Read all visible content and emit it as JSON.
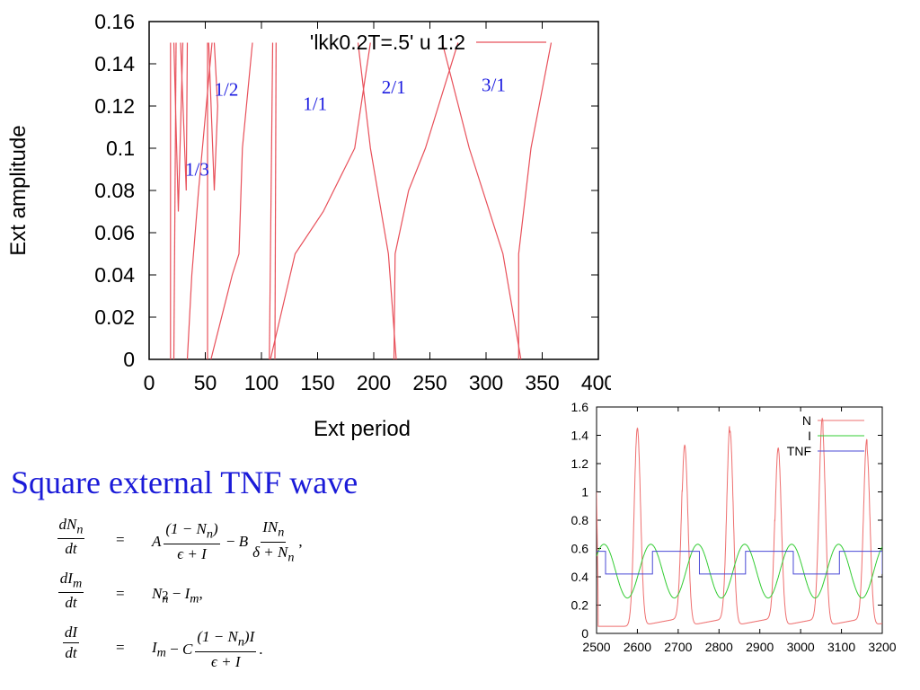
{
  "chart_data": [
    {
      "type": "line",
      "title": "",
      "xlabel": "Ext period",
      "ylabel": "Ext amplitude",
      "xlim": [
        0,
        400
      ],
      "ylim": [
        0,
        0.16
      ],
      "x_ticks": [
        "0",
        "50",
        "100",
        "150",
        "200",
        "250",
        "300",
        "350",
        "400"
      ],
      "y_ticks": [
        "0",
        "0.02",
        "0.04",
        "0.06",
        "0.08",
        "0.1",
        "0.12",
        "0.14",
        "0.16"
      ],
      "grid": false,
      "legend": {
        "position": "top-right",
        "entries": [
          "'lkk0.2T=.5' u 1:2"
        ]
      },
      "color": "#e8505a",
      "annotations": [
        {
          "text": "1/3",
          "x": 32,
          "y": 0.087
        },
        {
          "text": "1/2",
          "x": 58,
          "y": 0.125
        },
        {
          "text": "1/1",
          "x": 137,
          "y": 0.118
        },
        {
          "text": "2/1",
          "x": 207,
          "y": 0.126
        },
        {
          "text": "3/1",
          "x": 296,
          "y": 0.127
        }
      ],
      "series": [
        {
          "points": [
            [
              19,
              0
            ],
            [
              19,
              0.15
            ]
          ]
        },
        {
          "points": [
            [
              22,
              0
            ],
            [
              24,
              0.15
            ]
          ]
        },
        {
          "points": [
            [
              22,
              0.15
            ],
            [
              26,
              0.07
            ],
            [
              30,
              0.15
            ]
          ]
        },
        {
          "points": [
            [
              28,
              0.15
            ],
            [
              33,
              0.08
            ],
            [
              34,
              0.15
            ]
          ]
        },
        {
          "points": [
            [
              34,
              0
            ],
            [
              38,
              0.04
            ],
            [
              44,
              0.08
            ],
            [
              56,
              0.15
            ]
          ]
        },
        {
          "points": [
            [
              52,
              0
            ],
            [
              52,
              0.15
            ]
          ]
        },
        {
          "points": [
            [
              53,
              0.15
            ],
            [
              58,
              0.08
            ],
            [
              61,
              0.12
            ],
            [
              58,
              0.15
            ]
          ]
        },
        {
          "points": [
            [
              55,
              0
            ],
            [
              74,
              0.04
            ],
            [
              80,
              0.05
            ],
            [
              83,
              0.1
            ],
            [
              92,
              0.15
            ]
          ]
        },
        {
          "points": [
            [
              107,
              0
            ],
            [
              110,
              0.15
            ]
          ]
        },
        {
          "points": [
            [
              112,
              0
            ],
            [
              113,
              0.15
            ]
          ]
        },
        {
          "points": [
            [
              108,
              0
            ],
            [
              130,
              0.05
            ],
            [
              155,
              0.07
            ],
            [
              183,
              0.1
            ],
            [
              197,
              0.15
            ]
          ]
        },
        {
          "points": [
            [
              186,
              0.15
            ],
            [
              197,
              0.1
            ],
            [
              213,
              0.05
            ],
            [
              220,
              0
            ]
          ]
        },
        {
          "points": [
            [
              218,
              0
            ],
            [
              219,
              0.05
            ],
            [
              231,
              0.08
            ],
            [
              246,
              0.1
            ],
            [
              275,
              0.15
            ]
          ]
        },
        {
          "points": [
            [
              261,
              0.15
            ],
            [
              285,
              0.1
            ],
            [
              315,
              0.05
            ],
            [
              331,
              0
            ]
          ]
        },
        {
          "points": [
            [
              329,
              0
            ],
            [
              329,
              0.05
            ],
            [
              340,
              0.1
            ],
            [
              358,
              0.15
            ]
          ]
        }
      ]
    },
    {
      "type": "line",
      "title": "",
      "xlabel": "",
      "ylabel": "",
      "xlim": [
        2500,
        3200
      ],
      "ylim": [
        0,
        1.6
      ],
      "x_ticks": [
        "2500",
        "2600",
        "2700",
        "2800",
        "2900",
        "3000",
        "3100",
        "3200"
      ],
      "y_ticks": [
        "0",
        "0.2",
        "0.4",
        "0.6",
        "0.8",
        "1",
        "1.2",
        "1.4",
        "1.6"
      ],
      "grid": false,
      "legend": {
        "position": "top-right"
      },
      "series": [
        {
          "name": "N",
          "color": "#ee6f6f",
          "peaks": [
            2600,
            2716,
            2827,
            2945,
            3053,
            3162
          ],
          "peak_values": [
            1.45,
            1.33,
            1.43,
            1.31,
            1.46,
            1.31
          ],
          "baseline": 0.05
        },
        {
          "name": "I",
          "color": "#33cc33",
          "min": 0.25,
          "max": 0.63,
          "period": 115
        },
        {
          "name": "TNF",
          "color": "#4a4ad6",
          "low": 0.42,
          "high": 0.58,
          "steps": [
            [
              2500,
              0.58
            ],
            [
              2522,
              0.42
            ],
            [
              2637,
              0.58
            ],
            [
              2752,
              0.42
            ],
            [
              2865,
              0.58
            ],
            [
              2982,
              0.42
            ],
            [
              3095,
              0.58
            ],
            [
              3200,
              0.42
            ]
          ]
        }
      ]
    }
  ],
  "text": {
    "heading": "Square external TNF wave"
  },
  "equations": [
    {
      "lhs_num": "dN",
      "lhs_num_sub": "n",
      "lhs_den": "dt"
    },
    {
      "lhs_num": "dI",
      "lhs_num_sub": "m",
      "lhs_den": "dt"
    },
    {
      "lhs_num": "dI",
      "lhs_num_sub": "",
      "lhs_den": "dt"
    }
  ]
}
